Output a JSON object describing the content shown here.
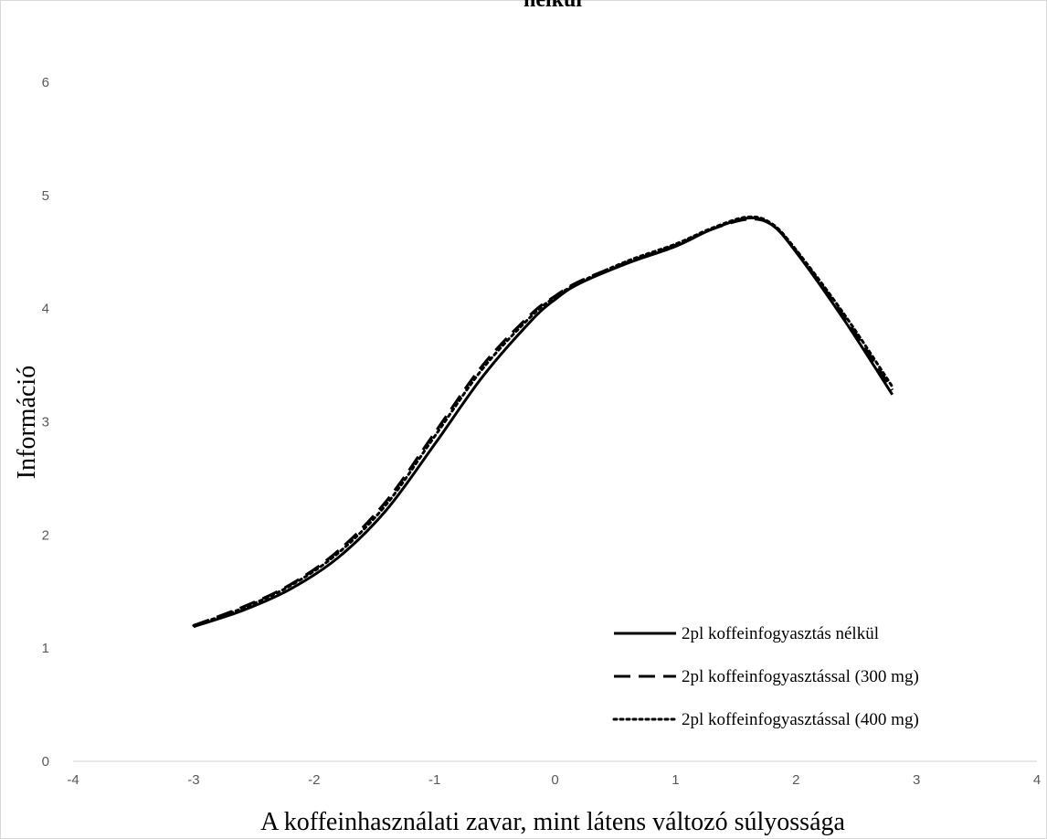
{
  "chart_data": {
    "type": "line",
    "title": "nélkül",
    "xlabel": "A koffeinhasználati zavar, mint látens változó súlyossága",
    "ylabel": "Információ",
    "xlim": [
      -4,
      4
    ],
    "ylim": [
      0,
      6
    ],
    "x_ticks": [
      "-4",
      "-3",
      "-2",
      "-1",
      "0",
      "1",
      "2",
      "3",
      "4"
    ],
    "y_ticks": [
      "0",
      "1",
      "2",
      "3",
      "4",
      "5",
      "6"
    ],
    "grid": false,
    "legend_position": "bottom-right",
    "series": [
      {
        "name": "2pl koffeinfogyasztás nélkül",
        "style": "solid",
        "color": "#000000",
        "x": [
          -3.0,
          -2.6,
          -2.2,
          -1.8,
          -1.4,
          -1.0,
          -0.6,
          -0.2,
          0.0,
          0.2,
          0.6,
          1.0,
          1.3,
          1.6,
          1.8,
          2.0,
          2.4,
          2.8
        ],
        "y": [
          1.19,
          1.33,
          1.52,
          1.8,
          2.22,
          2.8,
          3.4,
          3.89,
          4.08,
          4.22,
          4.4,
          4.55,
          4.7,
          4.8,
          4.74,
          4.5,
          3.9,
          3.24
        ]
      },
      {
        "name": "2pl koffeinfogyasztással (300 mg)",
        "style": "dashed",
        "color": "#000000",
        "x": [
          -3.0,
          -2.6,
          -2.2,
          -1.8,
          -1.4,
          -1.0,
          -0.6,
          -0.2,
          0.0,
          0.2,
          0.6,
          1.0,
          1.3,
          1.6,
          1.8,
          2.0,
          2.4,
          2.8
        ],
        "y": [
          1.2,
          1.36,
          1.56,
          1.86,
          2.3,
          2.9,
          3.5,
          3.95,
          4.11,
          4.24,
          4.41,
          4.56,
          4.7,
          4.79,
          4.74,
          4.51,
          3.93,
          3.28
        ]
      },
      {
        "name": "2pl koffeinfogyasztással (400 mg)",
        "style": "dotted",
        "color": "#000000",
        "x": [
          -3.0,
          -2.6,
          -2.2,
          -1.8,
          -1.4,
          -1.0,
          -0.6,
          -0.2,
          0.0,
          0.2,
          0.6,
          1.0,
          1.3,
          1.6,
          1.8,
          2.0,
          2.4,
          2.8
        ],
        "y": [
          1.2,
          1.35,
          1.55,
          1.84,
          2.27,
          2.87,
          3.47,
          3.93,
          4.1,
          4.23,
          4.42,
          4.57,
          4.71,
          4.81,
          4.75,
          4.52,
          3.95,
          3.31
        ]
      }
    ]
  }
}
